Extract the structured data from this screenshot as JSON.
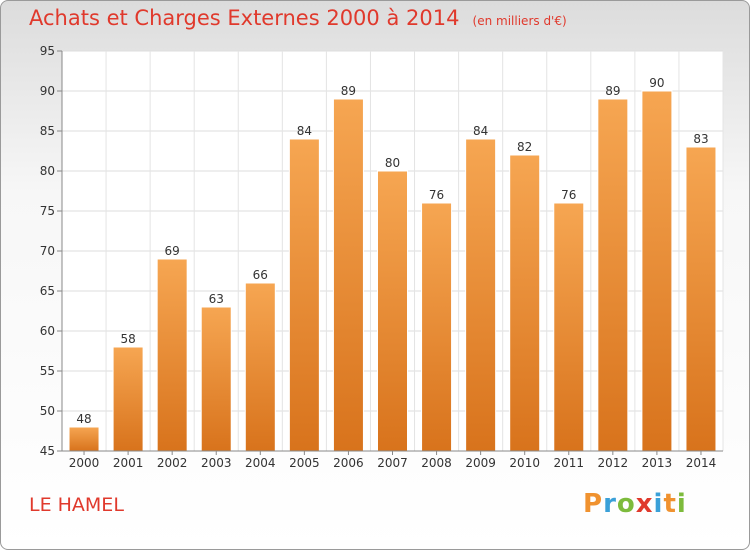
{
  "chart_data": {
    "type": "bar",
    "title": "Achats et Charges Externes 2000 à 2014",
    "subtitle": "(en milliers d'€)",
    "categories": [
      "2000",
      "2001",
      "2002",
      "2003",
      "2004",
      "2005",
      "2006",
      "2007",
      "2008",
      "2009",
      "2010",
      "2011",
      "2012",
      "2013",
      "2014"
    ],
    "values": [
      48,
      58,
      69,
      63,
      66,
      84,
      89,
      80,
      76,
      84,
      82,
      76,
      89,
      90,
      83
    ],
    "ylim": [
      45,
      95
    ],
    "yticks": [
      45,
      50,
      55,
      60,
      65,
      70,
      75,
      80,
      85,
      90,
      95
    ],
    "grid": true,
    "bar_color": "#f0922f",
    "xlabel": "",
    "ylabel": ""
  },
  "footer": {
    "commune": "LE HAMEL",
    "logo_letters": [
      {
        "ch": "P",
        "color": "#f0922f"
      },
      {
        "ch": "r",
        "color": "#3aa0d8"
      },
      {
        "ch": "o",
        "color": "#7dbb3c"
      },
      {
        "ch": "x",
        "color": "#e0392c"
      },
      {
        "ch": "i",
        "color": "#3aa0d8"
      },
      {
        "ch": "t",
        "color": "#f0922f"
      },
      {
        "ch": "i",
        "color": "#7dbb3c"
      }
    ]
  }
}
